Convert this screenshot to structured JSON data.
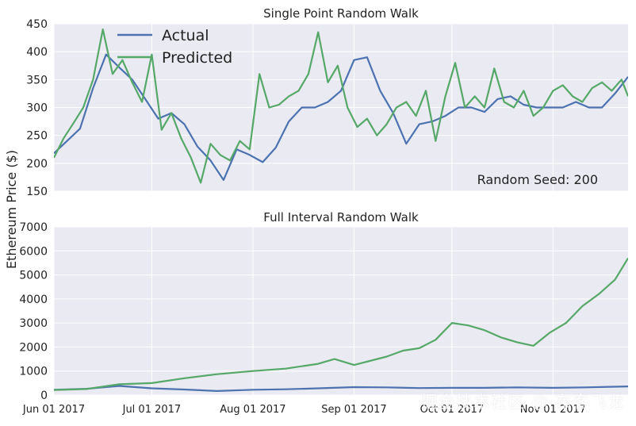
{
  "figure": {
    "ylabel": "Ethereum Price ($)",
    "watermark": "掘金技术社区 @ 布客飞龙"
  },
  "colors": {
    "actual": "#4c72b0",
    "predicted": "#55a868",
    "panel_bg": "#eaeaf2",
    "grid": "#ffffff"
  },
  "chart_data": [
    {
      "type": "line",
      "title": "Single Point Random Walk",
      "ylim": [
        150,
        450
      ],
      "yticks": [
        150,
        200,
        250,
        300,
        350,
        400,
        450
      ],
      "xlim": [
        "2017-06-01",
        "2017-11-24"
      ],
      "grid": true,
      "legend": "top-left",
      "annotation": "Random Seed: 200",
      "series": [
        {
          "name": "Actual",
          "x": [
            "2017-06-01",
            "2017-06-05",
            "2017-06-09",
            "2017-06-13",
            "2017-06-17",
            "2017-06-21",
            "2017-06-25",
            "2017-06-29",
            "2017-07-03",
            "2017-07-07",
            "2017-07-11",
            "2017-07-15",
            "2017-07-19",
            "2017-07-23",
            "2017-07-27",
            "2017-07-31",
            "2017-08-04",
            "2017-08-08",
            "2017-08-12",
            "2017-08-16",
            "2017-08-20",
            "2017-08-24",
            "2017-08-28",
            "2017-09-01",
            "2017-09-05",
            "2017-09-09",
            "2017-09-13",
            "2017-09-17",
            "2017-09-21",
            "2017-09-25",
            "2017-09-29",
            "2017-10-03",
            "2017-10-07",
            "2017-10-11",
            "2017-10-15",
            "2017-10-19",
            "2017-10-23",
            "2017-10-27",
            "2017-10-31",
            "2017-11-04",
            "2017-11-08",
            "2017-11-12",
            "2017-11-16",
            "2017-11-20",
            "2017-11-24"
          ],
          "values": [
            218,
            240,
            262,
            335,
            395,
            372,
            350,
            315,
            280,
            290,
            270,
            230,
            205,
            170,
            225,
            215,
            202,
            228,
            275,
            300,
            300,
            310,
            330,
            385,
            390,
            330,
            290,
            235,
            270,
            275,
            285,
            300,
            300,
            292,
            315,
            320,
            305,
            300,
            300,
            300,
            310,
            300,
            300,
            325,
            355
          ]
        },
        {
          "name": "Predicted",
          "x": [
            "2017-06-01",
            "2017-06-04",
            "2017-06-07",
            "2017-06-10",
            "2017-06-13",
            "2017-06-16",
            "2017-06-19",
            "2017-06-22",
            "2017-06-25",
            "2017-06-28",
            "2017-07-01",
            "2017-07-04",
            "2017-07-07",
            "2017-07-10",
            "2017-07-13",
            "2017-07-16",
            "2017-07-19",
            "2017-07-22",
            "2017-07-25",
            "2017-07-28",
            "2017-07-31",
            "2017-08-03",
            "2017-08-06",
            "2017-08-09",
            "2017-08-12",
            "2017-08-15",
            "2017-08-18",
            "2017-08-21",
            "2017-08-24",
            "2017-08-27",
            "2017-08-30",
            "2017-09-02",
            "2017-09-05",
            "2017-09-08",
            "2017-09-11",
            "2017-09-14",
            "2017-09-17",
            "2017-09-20",
            "2017-09-23",
            "2017-09-26",
            "2017-09-29",
            "2017-10-02",
            "2017-10-05",
            "2017-10-08",
            "2017-10-11",
            "2017-10-14",
            "2017-10-17",
            "2017-10-20",
            "2017-10-23",
            "2017-10-26",
            "2017-10-29",
            "2017-11-01",
            "2017-11-04",
            "2017-11-07",
            "2017-11-10",
            "2017-11-13",
            "2017-11-16",
            "2017-11-19",
            "2017-11-22",
            "2017-11-24"
          ],
          "values": [
            210,
            245,
            272,
            300,
            350,
            440,
            360,
            385,
            345,
            310,
            395,
            260,
            290,
            245,
            210,
            165,
            235,
            215,
            205,
            240,
            225,
            360,
            300,
            305,
            320,
            330,
            360,
            435,
            345,
            375,
            300,
            265,
            280,
            250,
            270,
            300,
            310,
            285,
            330,
            240,
            320,
            380,
            300,
            320,
            300,
            370,
            310,
            300,
            330,
            285,
            300,
            330,
            340,
            320,
            310,
            335,
            345,
            330,
            350,
            320
          ]
        }
      ]
    },
    {
      "type": "line",
      "title": "Full Interval Random Walk",
      "ylim": [
        0,
        7000
      ],
      "yticks": [
        0,
        1000,
        2000,
        3000,
        4000,
        5000,
        6000,
        7000
      ],
      "xlim": [
        "2017-06-01",
        "2017-11-24"
      ],
      "xticks": [
        "Jun 01 2017",
        "Jul 01 2017",
        "Aug 01 2017",
        "Sep 01 2017",
        "Oct 01 2017",
        "Nov 01 2017"
      ],
      "xtick_dates": [
        "2017-06-01",
        "2017-07-01",
        "2017-08-01",
        "2017-09-01",
        "2017-10-01",
        "2017-11-01"
      ],
      "grid": true,
      "series": [
        {
          "name": "Actual",
          "x": [
            "2017-06-01",
            "2017-06-11",
            "2017-06-21",
            "2017-07-01",
            "2017-07-11",
            "2017-07-21",
            "2017-08-01",
            "2017-08-11",
            "2017-08-21",
            "2017-09-01",
            "2017-09-11",
            "2017-09-21",
            "2017-10-01",
            "2017-10-11",
            "2017-10-21",
            "2017-11-01",
            "2017-11-11",
            "2017-11-24"
          ],
          "values": [
            220,
            260,
            380,
            280,
            230,
            170,
            220,
            240,
            280,
            330,
            320,
            290,
            300,
            300,
            320,
            300,
            320,
            360
          ]
        },
        {
          "name": "Predicted",
          "x": [
            "2017-06-01",
            "2017-06-11",
            "2017-06-21",
            "2017-07-01",
            "2017-07-11",
            "2017-07-21",
            "2017-08-01",
            "2017-08-11",
            "2017-08-21",
            "2017-08-26",
            "2017-09-01",
            "2017-09-11",
            "2017-09-16",
            "2017-09-21",
            "2017-09-26",
            "2017-10-01",
            "2017-10-06",
            "2017-10-11",
            "2017-10-16",
            "2017-10-21",
            "2017-10-26",
            "2017-10-31",
            "2017-11-05",
            "2017-11-10",
            "2017-11-15",
            "2017-11-20",
            "2017-11-24"
          ],
          "values": [
            210,
            250,
            450,
            500,
            700,
            870,
            1000,
            1100,
            1300,
            1500,
            1250,
            1600,
            1850,
            1950,
            2300,
            3000,
            2900,
            2700,
            2400,
            2200,
            2050,
            2600,
            3000,
            3700,
            4200,
            4800,
            5700
          ]
        }
      ]
    }
  ]
}
